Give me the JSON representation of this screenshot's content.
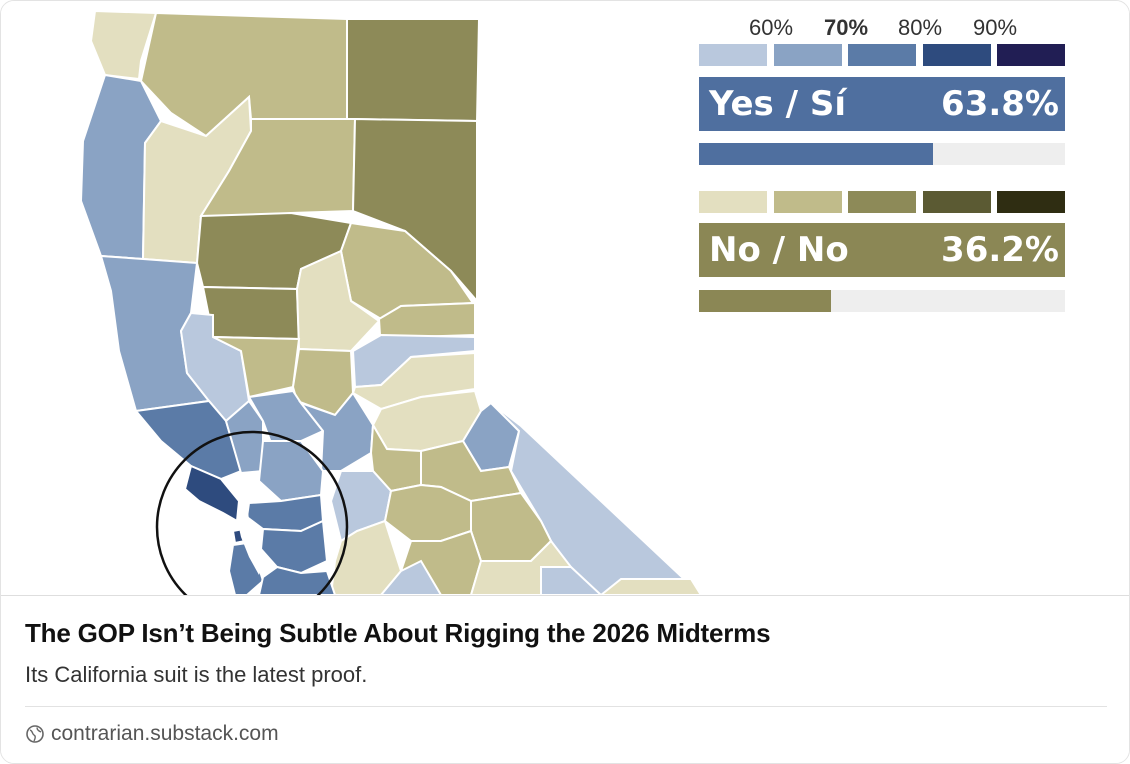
{
  "map": {
    "legend_ticks": [
      "60%",
      "70%",
      "80%",
      "90%"
    ],
    "yes_palette": [
      "#b9c8dd",
      "#8aa3c4",
      "#5b7ba7",
      "#2e4b7e",
      "#211e54"
    ],
    "no_palette": [
      "#e3dfc0",
      "#c0bb8a",
      "#8d8a58",
      "#5b5a33",
      "#2f2d12"
    ],
    "yes": {
      "label": "Yes / Sí",
      "percent": "63.8%",
      "share": 0.638,
      "color": "#4f6f9f"
    },
    "no": {
      "label": "No / No",
      "percent": "36.2%",
      "share": 0.362,
      "color": "#8b8755"
    }
  },
  "article": {
    "title": "The GOP Isn’t Being Subtle About Rigging the 2026 Midterms",
    "subtitle": "Its California suit is the latest proof.",
    "source": "contrarian.substack.com"
  }
}
